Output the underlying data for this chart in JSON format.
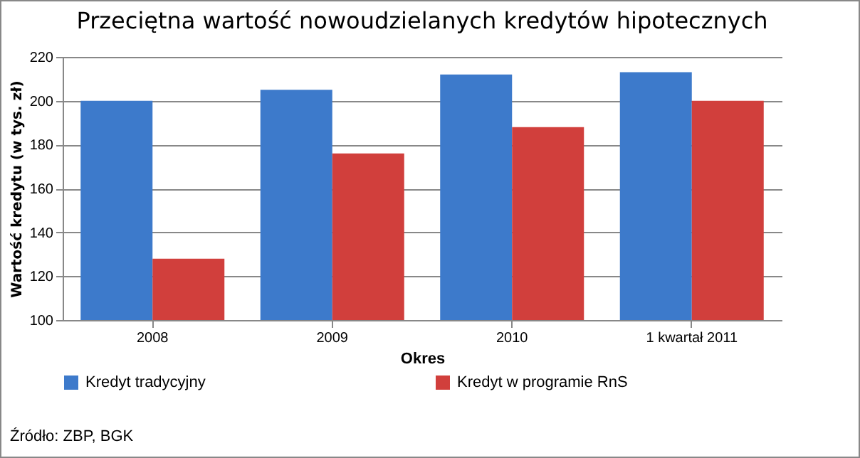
{
  "chart_data": {
    "type": "bar",
    "title": "Przeciętna wartość nowoudzielanych kredytów hipotecznych",
    "xlabel": "Okres",
    "ylabel": "Wartość kredytu (w tys. zł)",
    "categories": [
      "2008",
      "2009",
      "2010",
      "1 kwartał 2011"
    ],
    "series": [
      {
        "name": "Kredyt tradycyjny",
        "color": "#3d7acb",
        "values": [
          200,
          205,
          212,
          213
        ]
      },
      {
        "name": "Kredyt w programie RnS",
        "color": "#d13f3c",
        "values": [
          128,
          176,
          188,
          200
        ]
      }
    ],
    "ylim": [
      100,
      220
    ],
    "yticks": [
      100,
      120,
      140,
      160,
      180,
      200,
      220
    ],
    "grid": "y",
    "legend": "bottom",
    "annotations": [
      "Źródło: ZBP, BGK"
    ]
  }
}
